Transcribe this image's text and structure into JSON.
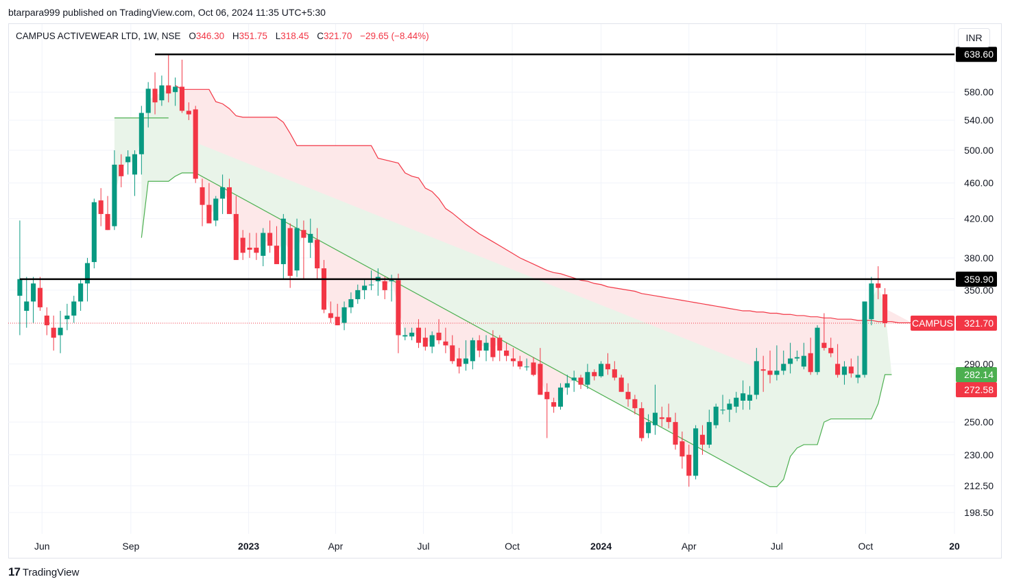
{
  "publisher": "btarpara999 published on TradingView.com, Oct 06, 2024 11:35 UTC+5:30",
  "legend": {
    "symbol": "CAMPUS ACTIVEWEAR LTD, 1W, NSE",
    "o_label": "O",
    "o": "346.30",
    "h_label": "H",
    "h": "351.75",
    "l_label": "L",
    "l": "318.45",
    "c_label": "C",
    "c": "321.70",
    "change": "−29.65 (−8.44%)"
  },
  "currency": "INR",
  "footer_brand": "TradingView",
  "footer_logo": "17",
  "colors": {
    "up": "#089981",
    "down": "#f23645",
    "cloud_down": "#fde8e9",
    "cloud_up": "#e9f4e9",
    "line_down": "#f23645",
    "line_up": "#4caf50"
  },
  "chart_data": {
    "type": "candlestick",
    "symbol_tag": "CAMPUS",
    "scale": "log",
    "ylim": [
      188,
      690
    ],
    "y_ticks": [
      "580.00",
      "540.00",
      "500.00",
      "460.00",
      "420.00",
      "380.00",
      "350.00",
      "290.00",
      "250.00",
      "230.00",
      "212.50",
      "198.50"
    ],
    "x_ticks": [
      {
        "label": "Jun",
        "date": "2022-06-01",
        "bold": false
      },
      {
        "label": "Sep",
        "date": "2022-09-01",
        "bold": false
      },
      {
        "label": "2023",
        "date": "2023-01-01",
        "bold": true
      },
      {
        "label": "Apr",
        "date": "2023-04-01",
        "bold": false
      },
      {
        "label": "Jul",
        "date": "2023-07-01",
        "bold": false
      },
      {
        "label": "Oct",
        "date": "2023-10-01",
        "bold": false
      },
      {
        "label": "2024",
        "date": "2024-01-01",
        "bold": true
      },
      {
        "label": "Apr",
        "date": "2024-04-01",
        "bold": false
      },
      {
        "label": "Jul",
        "date": "2024-07-01",
        "bold": false
      },
      {
        "label": "Oct",
        "date": "2024-10-01",
        "bold": false
      },
      {
        "label": "20",
        "date": "2025-01-01",
        "bold": true
      }
    ],
    "first_week": "2022-05-09",
    "x_range": [
      "2022-04-27",
      "2025-01-01"
    ],
    "horizontal_lines": [
      {
        "value": "638.60",
        "price": 638.6,
        "from": "2022-09-26"
      },
      {
        "value": "359.90",
        "price": 359.9,
        "from": "2022-05-09"
      }
    ],
    "last_price": {
      "label": "321.70",
      "price": 321.7
    },
    "stop_labels": [
      {
        "label": "282.14",
        "price": 282.14,
        "color": "#4caf50"
      },
      {
        "label": "272.58",
        "price": 272.58,
        "color": "#f23645"
      }
    ],
    "candles": [
      [
        345,
        418,
        312,
        360
      ],
      [
        332,
        362,
        318,
        340
      ],
      [
        340,
        362,
        322,
        356
      ],
      [
        352,
        362,
        332,
        335
      ],
      [
        328,
        335,
        312,
        320
      ],
      [
        318,
        328,
        300,
        310
      ],
      [
        312,
        332,
        298,
        318
      ],
      [
        325,
        338,
        316,
        328
      ],
      [
        328,
        345,
        322,
        340
      ],
      [
        340,
        360,
        332,
        356
      ],
      [
        356,
        380,
        340,
        375
      ],
      [
        376,
        442,
        370,
        438
      ],
      [
        440,
        454,
        412,
        425
      ],
      [
        425,
        445,
        408,
        408
      ],
      [
        412,
        500,
        408,
        482
      ],
      [
        482,
        495,
        455,
        468
      ],
      [
        485,
        500,
        470,
        492
      ],
      [
        470,
        500,
        445,
        495
      ],
      [
        495,
        560,
        470,
        550
      ],
      [
        550,
        595,
        530,
        585
      ],
      [
        585,
        610,
        548,
        565
      ],
      [
        568,
        605,
        560,
        590
      ],
      [
        590,
        638,
        565,
        578
      ],
      [
        580,
        602,
        560,
        588
      ],
      [
        588,
        630,
        550,
        553
      ],
      [
        553,
        565,
        540,
        548
      ],
      [
        555,
        560,
        460,
        465
      ],
      [
        455,
        465,
        412,
        435
      ],
      [
        435,
        460,
        418,
        415
      ],
      [
        418,
        445,
        412,
        442
      ],
      [
        442,
        470,
        425,
        455
      ],
      [
        455,
        465,
        425,
        425
      ],
      [
        425,
        445,
        378,
        378
      ],
      [
        400,
        408,
        378,
        385
      ],
      [
        390,
        405,
        380,
        388
      ],
      [
        390,
        405,
        378,
        385
      ],
      [
        382,
        410,
        372,
        405
      ],
      [
        405,
        418,
        385,
        392
      ],
      [
        392,
        412,
        375,
        374
      ],
      [
        374,
        425,
        360,
        420
      ],
      [
        410,
        415,
        352,
        363
      ],
      [
        368,
        420,
        362,
        410
      ],
      [
        408,
        418,
        360,
        400
      ],
      [
        395,
        420,
        380,
        404
      ],
      [
        398,
        410,
        360,
        370
      ],
      [
        370,
        378,
        330,
        333
      ],
      [
        330,
        340,
        322,
        326
      ],
      [
        327,
        338,
        320,
        320
      ],
      [
        322,
        340,
        316,
        335
      ],
      [
        335,
        348,
        330,
        342
      ],
      [
        342,
        355,
        338,
        350
      ],
      [
        350,
        360,
        342,
        354
      ],
      [
        355,
        368,
        350,
        355
      ],
      [
        358,
        370,
        345,
        362
      ],
      [
        358,
        362,
        342,
        350
      ],
      [
        358,
        364,
        340,
        359
      ],
      [
        359,
        365,
        298,
        312
      ],
      [
        311,
        318,
        308,
        312
      ],
      [
        311,
        318,
        308,
        314
      ],
      [
        318,
        325,
        302,
        306
      ],
      [
        310,
        318,
        300,
        303
      ],
      [
        303,
        315,
        298,
        312
      ],
      [
        314,
        325,
        305,
        308
      ],
      [
        307,
        318,
        298,
        304
      ],
      [
        304,
        312,
        290,
        292
      ],
      [
        294,
        302,
        283,
        288
      ],
      [
        290,
        308,
        285,
        294
      ],
      [
        292,
        310,
        286,
        308
      ],
      [
        308,
        312,
        295,
        300
      ],
      [
        300,
        312,
        292,
        306
      ],
      [
        310,
        316,
        292,
        295
      ],
      [
        310,
        312,
        292,
        300
      ],
      [
        300,
        306,
        292,
        296
      ],
      [
        294,
        302,
        288,
        292
      ],
      [
        292,
        296,
        286,
        288
      ],
      [
        288,
        294,
        285,
        288
      ],
      [
        291,
        295,
        281,
        282
      ],
      [
        290,
        302,
        268,
        268
      ],
      [
        270,
        276,
        240,
        265
      ],
      [
        263,
        266,
        256,
        260
      ],
      [
        260,
        276,
        258,
        273
      ],
      [
        273,
        282,
        268,
        276
      ],
      [
        278,
        285,
        270,
        280
      ],
      [
        280,
        282,
        272,
        275
      ],
      [
        275,
        290,
        272,
        284
      ],
      [
        284,
        286,
        278,
        281
      ],
      [
        281,
        292,
        280,
        290
      ],
      [
        290,
        298,
        282,
        286
      ],
      [
        286,
        292,
        278,
        280
      ],
      [
        280,
        282,
        270,
        270
      ],
      [
        270,
        276,
        260,
        265
      ],
      [
        265,
        268,
        255,
        259
      ],
      [
        259,
        263,
        238,
        240
      ],
      [
        243,
        255,
        240,
        250
      ],
      [
        248,
        275,
        242,
        256
      ],
      [
        253,
        260,
        247,
        252
      ],
      [
        253,
        262,
        246,
        250
      ],
      [
        250,
        256,
        233,
        236
      ],
      [
        238,
        244,
        222,
        229
      ],
      [
        230,
        236,
        212,
        218
      ],
      [
        218,
        248,
        216,
        246
      ],
      [
        242,
        248,
        230,
        236
      ],
      [
        236,
        258,
        234,
        250
      ],
      [
        248,
        262,
        246,
        260
      ],
      [
        258,
        268,
        255,
        258
      ],
      [
        258,
        265,
        250,
        262
      ],
      [
        260,
        270,
        256,
        266
      ],
      [
        264,
        278,
        258,
        269
      ],
      [
        264,
        274,
        258,
        268
      ],
      [
        268,
        302,
        265,
        292
      ],
      [
        286,
        296,
        270,
        285
      ],
      [
        285,
        300,
        276,
        282
      ],
      [
        282,
        304,
        278,
        285
      ],
      [
        285,
        300,
        282,
        290
      ],
      [
        290,
        306,
        283,
        294
      ],
      [
        294,
        300,
        292,
        295
      ],
      [
        288,
        306,
        286,
        296
      ],
      [
        298,
        310,
        282,
        284
      ],
      [
        284,
        320,
        282,
        318
      ],
      [
        306,
        330,
        300,
        302
      ],
      [
        302,
        310,
        295,
        298
      ],
      [
        290,
        305,
        280,
        282
      ],
      [
        282,
        292,
        275,
        288
      ],
      [
        288,
        294,
        280,
        283
      ],
      [
        280,
        296,
        276,
        282
      ],
      [
        282,
        340,
        280,
        340
      ],
      [
        325,
        362,
        320,
        356
      ],
      [
        356,
        372,
        342,
        352
      ],
      [
        346.3,
        351.75,
        318.45,
        321.7
      ]
    ],
    "series_down": [
      [
        23,
        590
      ],
      [
        24,
        584
      ],
      [
        25,
        584
      ],
      [
        26,
        584
      ],
      [
        27,
        584
      ],
      [
        28,
        584
      ],
      [
        29,
        566
      ],
      [
        30,
        563
      ],
      [
        31,
        556
      ],
      [
        32,
        546
      ],
      [
        33,
        544
      ],
      [
        34,
        544
      ],
      [
        35,
        544
      ],
      [
        36,
        544
      ],
      [
        37,
        544
      ],
      [
        38,
        544
      ],
      [
        39,
        537
      ],
      [
        40,
        522
      ],
      [
        41,
        506
      ],
      [
        42,
        506
      ],
      [
        43,
        506
      ],
      [
        44,
        506
      ],
      [
        45,
        506
      ],
      [
        46,
        506
      ],
      [
        47,
        506
      ],
      [
        48,
        506
      ],
      [
        49,
        506
      ],
      [
        50,
        506
      ],
      [
        51,
        506
      ],
      [
        52,
        506
      ],
      [
        53,
        490
      ],
      [
        54,
        488
      ],
      [
        55,
        486
      ],
      [
        56,
        484
      ],
      [
        57,
        472
      ],
      [
        58,
        468
      ],
      [
        59,
        466
      ],
      [
        60,
        454
      ],
      [
        61,
        450
      ],
      [
        62,
        442
      ],
      [
        63,
        431
      ],
      [
        64,
        426
      ],
      [
        65,
        420
      ],
      [
        66,
        414
      ],
      [
        67,
        409
      ],
      [
        68,
        404
      ],
      [
        69,
        400
      ],
      [
        70,
        396
      ],
      [
        71,
        392
      ],
      [
        72,
        388
      ],
      [
        73,
        384
      ],
      [
        74,
        380
      ],
      [
        75,
        377
      ],
      [
        76,
        374
      ],
      [
        77,
        371
      ],
      [
        78,
        368
      ],
      [
        79,
        366
      ],
      [
        80,
        365
      ],
      [
        81,
        363
      ],
      [
        82,
        361
      ],
      [
        83,
        359
      ],
      [
        84,
        358
      ],
      [
        85,
        356
      ],
      [
        86,
        355
      ],
      [
        87,
        353
      ],
      [
        88,
        352
      ],
      [
        89,
        351
      ],
      [
        90,
        350
      ],
      [
        91,
        349
      ],
      [
        92,
        347
      ],
      [
        93,
        346
      ],
      [
        94,
        345
      ],
      [
        95,
        344
      ],
      [
        96,
        343
      ],
      [
        97,
        342
      ],
      [
        98,
        341
      ],
      [
        99,
        340
      ],
      [
        100,
        339
      ],
      [
        101,
        338
      ],
      [
        102,
        337
      ],
      [
        103,
        336
      ],
      [
        104,
        335
      ],
      [
        105,
        334
      ],
      [
        106,
        333
      ],
      [
        107,
        332
      ],
      [
        108,
        332
      ],
      [
        109,
        331
      ],
      [
        110,
        331
      ],
      [
        111,
        330
      ],
      [
        112,
        330
      ],
      [
        113,
        329
      ],
      [
        114,
        329
      ],
      [
        115,
        328
      ],
      [
        116,
        328
      ],
      [
        117,
        327
      ],
      [
        118,
        327
      ],
      [
        119,
        326
      ],
      [
        120,
        326
      ],
      [
        121,
        325
      ],
      [
        122,
        325
      ],
      [
        123,
        325
      ],
      [
        124,
        324
      ],
      [
        125,
        324
      ],
      [
        126,
        324
      ],
      [
        127,
        323
      ],
      [
        128,
        323
      ],
      [
        129,
        323
      ],
      [
        130,
        322
      ],
      [
        131,
        322
      ],
      [
        132,
        322
      ]
    ],
    "series_up": [
      [
        14,
        543
      ],
      [
        15,
        543
      ],
      [
        16,
        543
      ],
      [
        17,
        543
      ],
      [
        18,
        543
      ],
      [
        19,
        543
      ],
      [
        20,
        543
      ],
      [
        21,
        543
      ],
      [
        22,
        543
      ],
      [
        18,
        400
      ],
      [
        19,
        462
      ],
      [
        20,
        462
      ],
      [
        21,
        462
      ],
      [
        22,
        462
      ],
      [
        23,
        468
      ],
      [
        24,
        472
      ],
      [
        25,
        472
      ],
      [
        26,
        472
      ],
      [
        111,
        212
      ],
      [
        112,
        212
      ],
      [
        113,
        216
      ],
      [
        114,
        229
      ],
      [
        115,
        234
      ],
      [
        116,
        236
      ],
      [
        117,
        236
      ],
      [
        118,
        236
      ],
      [
        119,
        250
      ],
      [
        120,
        252
      ],
      [
        121,
        252
      ],
      [
        122,
        252
      ],
      [
        123,
        252
      ],
      [
        124,
        252
      ],
      [
        125,
        252
      ],
      [
        126,
        252
      ],
      [
        127,
        262
      ],
      [
        128,
        282.14
      ],
      [
        129,
        282.14
      ]
    ]
  }
}
